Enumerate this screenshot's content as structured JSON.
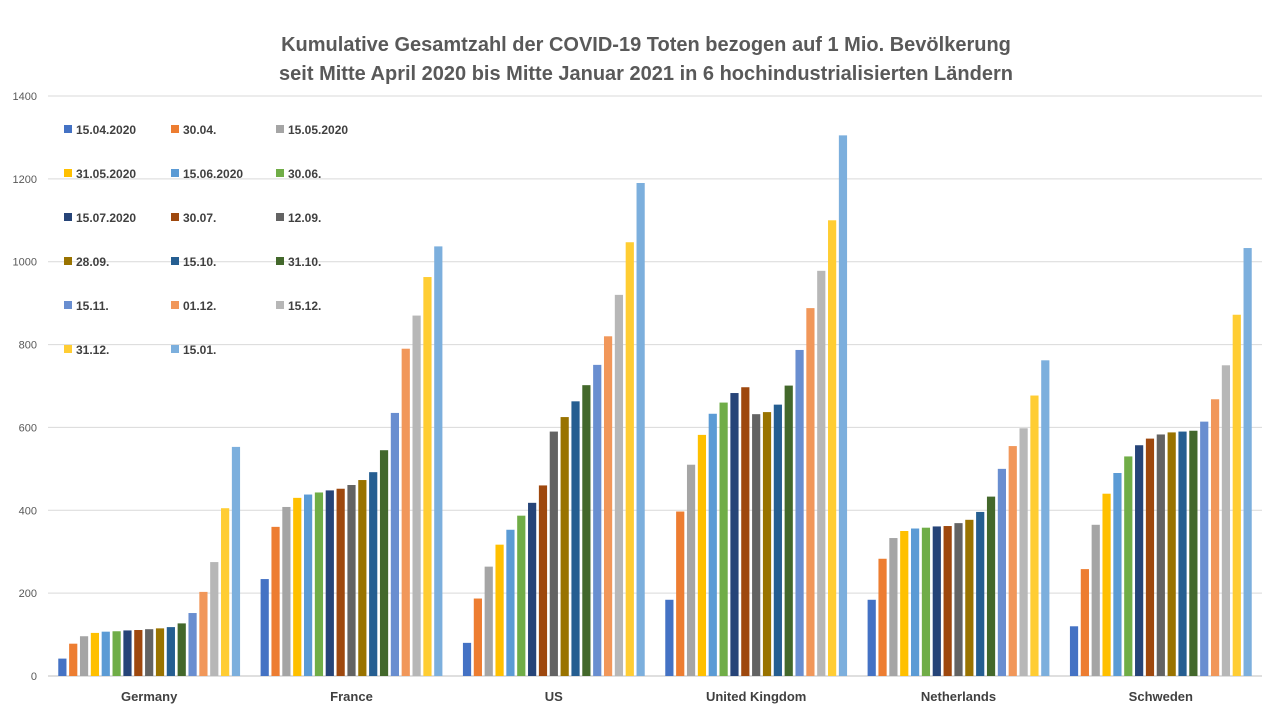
{
  "chart_data": {
    "type": "bar",
    "title_lines": [
      "Kumulative Gesamtzahl der COVID-19 Toten bezogen auf 1 Mio. Bevölkerung",
      "seit Mitte April 2020 bis Mitte Januar 2021 in 6 hochindustrialisierten Ländern"
    ],
    "xlabel": "",
    "ylabel": "",
    "ylim": [
      0,
      1400
    ],
    "yticks": [
      "0",
      "200",
      "400",
      "600",
      "800",
      "1000",
      "1200",
      "1400"
    ],
    "grid": true,
    "legend_position": "top-left",
    "categories": [
      "Germany",
      "France",
      "US",
      "United Kingdom",
      "Netherlands",
      "Schweden"
    ],
    "series": [
      {
        "name": "15.04.2020",
        "color": "#4472C4",
        "values": [
          42,
          234,
          80,
          184,
          184,
          120
        ]
      },
      {
        "name": "30.04.",
        "color": "#ED7D31",
        "values": [
          78,
          360,
          187,
          397,
          283,
          258
        ]
      },
      {
        "name": "15.05.2020",
        "color": "#A5A5A5",
        "values": [
          96,
          408,
          264,
          510,
          333,
          365
        ]
      },
      {
        "name": "31.05.2020",
        "color": "#FFC000",
        "values": [
          104,
          430,
          317,
          582,
          350,
          440
        ]
      },
      {
        "name": "15.06.2020",
        "color": "#5B9BD5",
        "values": [
          107,
          438,
          353,
          633,
          356,
          490
        ]
      },
      {
        "name": "30.06.",
        "color": "#70AD47",
        "values": [
          108,
          443,
          387,
          660,
          358,
          530
        ]
      },
      {
        "name": "15.07.2020",
        "color": "#264478",
        "values": [
          110,
          448,
          418,
          683,
          361,
          557
        ]
      },
      {
        "name": "30.07.",
        "color": "#9E480E",
        "values": [
          111,
          452,
          460,
          697,
          362,
          573
        ]
      },
      {
        "name": "12.09.",
        "color": "#636363",
        "values": [
          113,
          461,
          590,
          632,
          369,
          583
        ]
      },
      {
        "name": "28.09.",
        "color": "#997300",
        "values": [
          115,
          473,
          625,
          637,
          377,
          588
        ]
      },
      {
        "name": "15.10.",
        "color": "#255E91",
        "values": [
          118,
          492,
          663,
          655,
          396,
          590
        ]
      },
      {
        "name": "31.10.",
        "color": "#43682B",
        "values": [
          127,
          545,
          702,
          701,
          433,
          592
        ]
      },
      {
        "name": "15.11.",
        "color": "#698ED0",
        "values": [
          152,
          635,
          751,
          787,
          500,
          614
        ]
      },
      {
        "name": "01.12.",
        "color": "#F1975A",
        "values": [
          203,
          790,
          820,
          888,
          555,
          668
        ]
      },
      {
        "name": "15.12.",
        "color": "#B7B7B7",
        "values": [
          275,
          870,
          920,
          978,
          598,
          750
        ]
      },
      {
        "name": "31.12.",
        "color": "#FFCD33",
        "values": [
          405,
          963,
          1047,
          1100,
          677,
          872
        ]
      },
      {
        "name": "15.01.",
        "color": "#7CAFDD",
        "values": [
          553,
          1037,
          1190,
          1305,
          762,
          1033
        ]
      }
    ]
  }
}
